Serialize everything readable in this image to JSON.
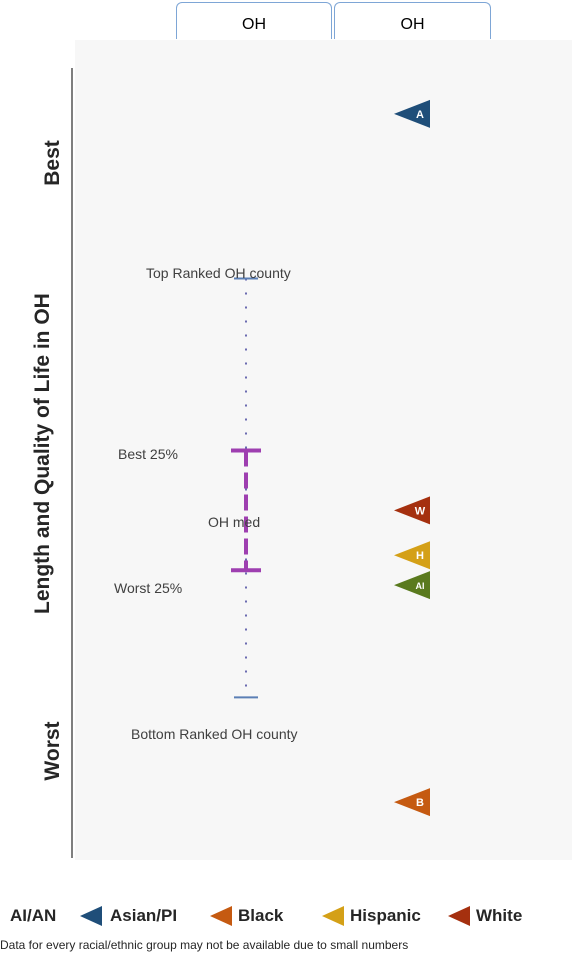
{
  "column_headers": [
    "OH",
    "OH"
  ],
  "axis_title": "Length and Quality of Life in OH",
  "best_label": "Best",
  "worst_label": "Worst",
  "annotations": {
    "top": "Top Ranked OH county",
    "best25": "Best 25%",
    "median": "OH med",
    "worst25": "Worst 25%",
    "bottom": "Bottom Ranked OH county"
  },
  "legend": [
    {
      "label": "AI/AN",
      "color": "#5a7a1e"
    },
    {
      "label": "Asian/PI",
      "color": "#1f4e79"
    },
    {
      "label": "Black",
      "color": "#c55a11"
    },
    {
      "label": "Hispanic",
      "color": "#d4a017"
    },
    {
      "label": "White",
      "color": "#a5300f"
    }
  ],
  "footnote": "Data for every racial/ethnic group may not be available due to small numbers",
  "chart_data": {
    "type": "scatter",
    "y_scale": "rank position (0 = Worst end, 100 = Best end)",
    "ylim": [
      0,
      100
    ],
    "county_range": {
      "top_ranked": 74,
      "best_25": 51,
      "median": 43,
      "worst_25": 35,
      "bottom_ranked": 18
    },
    "groups": [
      {
        "name": "Asian/PI",
        "abbr": "A",
        "value": 96,
        "color": "#1f4e79"
      },
      {
        "name": "White",
        "abbr": "W",
        "value": 43,
        "color": "#a5300f"
      },
      {
        "name": "Hispanic",
        "abbr": "H",
        "value": 37,
        "color": "#d4a017"
      },
      {
        "name": "AI/AN",
        "abbr": "AI",
        "value": 33,
        "color": "#5a7a1e"
      },
      {
        "name": "Black",
        "abbr": "B",
        "value": 4,
        "color": "#c55a11"
      }
    ]
  }
}
